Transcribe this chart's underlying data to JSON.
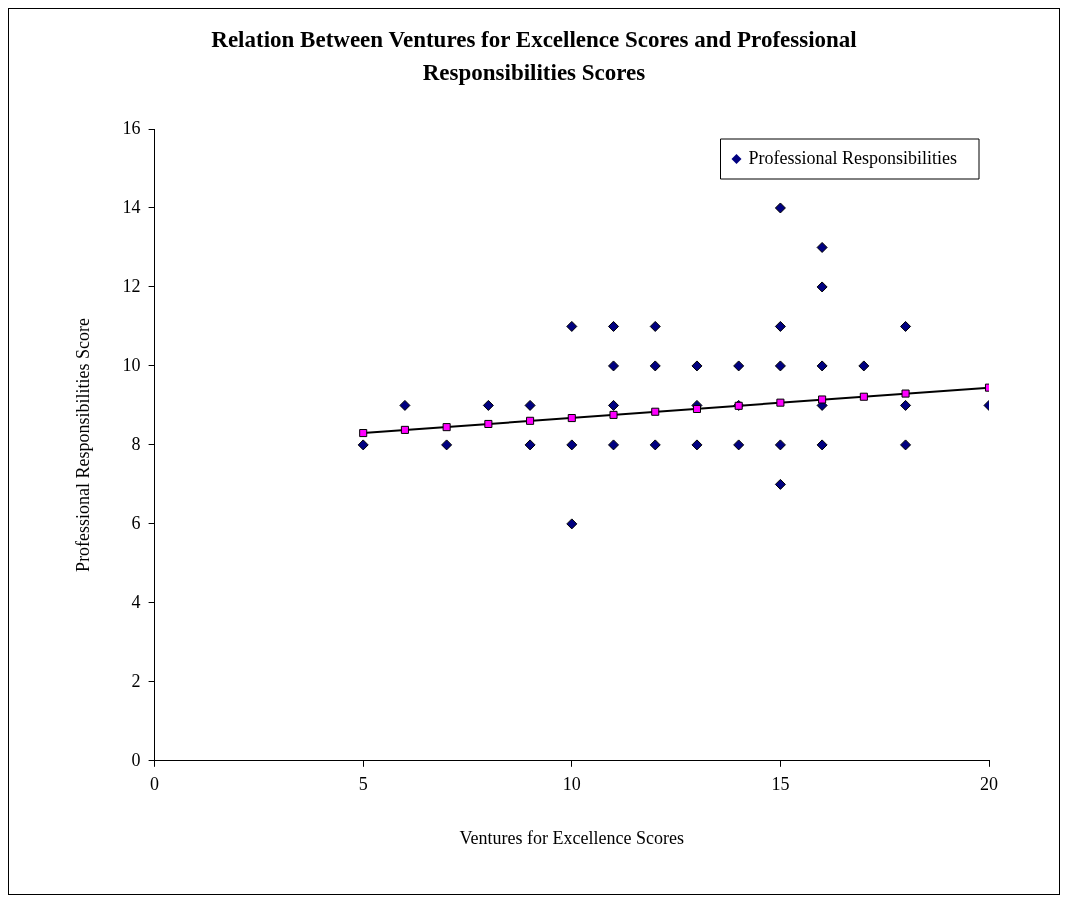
{
  "chart_data": {
    "type": "scatter",
    "title": "Relation Between Ventures for Excellence Scores and Professional Responsibilities Scores",
    "xlabel": "Ventures for Excellence Scores",
    "ylabel": "Professional Responsibilities Score",
    "xlim": [
      0,
      20
    ],
    "xticks": [
      0,
      5,
      10,
      15,
      20
    ],
    "ylim": [
      0,
      16
    ],
    "yticks": [
      0,
      2,
      4,
      6,
      8,
      10,
      12,
      14,
      16
    ],
    "grid": false,
    "legend": "top right",
    "series": [
      {
        "name": "Professional Responsibilities",
        "type": "scatter",
        "marker": "diamond",
        "color": "#000080",
        "x": [
          5,
          6,
          7,
          8,
          9,
          9,
          10,
          10,
          10,
          11,
          11,
          11,
          11,
          12,
          12,
          12,
          13,
          13,
          13,
          14,
          14,
          14,
          15,
          15,
          15,
          15,
          15,
          16,
          16,
          16,
          16,
          16,
          17,
          18,
          18,
          18,
          20
        ],
        "values": [
          8,
          9,
          8,
          9,
          9,
          8,
          11,
          8,
          6,
          11,
          10,
          9,
          8,
          11,
          10,
          8,
          10,
          9,
          8,
          10,
          9,
          8,
          14,
          11,
          10,
          8,
          7,
          13,
          12,
          10,
          9,
          8,
          10,
          11,
          9,
          8,
          9
        ]
      },
      {
        "type": "scatter",
        "marker": "square",
        "color": "#ff00ff",
        "x": [
          5,
          6,
          7,
          8,
          9,
          10,
          11,
          12,
          13,
          14,
          15,
          16,
          17,
          18,
          20
        ],
        "values": [
          8.3,
          8.38,
          8.45,
          8.53,
          8.61,
          8.68,
          8.76,
          8.84,
          8.91,
          8.99,
          9.07,
          9.15,
          9.22,
          9.3,
          9.45
        ]
      },
      {
        "type": "line",
        "marker": "none",
        "color": "#000000",
        "x": [
          5,
          20
        ],
        "values": [
          8.3,
          9.45
        ]
      }
    ]
  }
}
